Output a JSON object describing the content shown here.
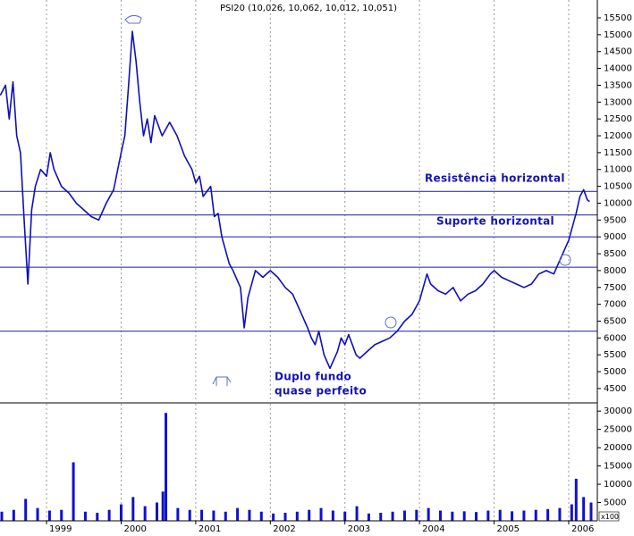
{
  "chart_data": [
    {
      "type": "line",
      "title": "PSI20 (10,026, 10,062, 10,012, 10,051)",
      "color": "#1010b8",
      "x": [
        1998.38,
        1998.45,
        1998.5,
        1998.55,
        1998.6,
        1998.65,
        1998.7,
        1998.75,
        1998.8,
        1998.85,
        1998.92,
        1999.0,
        1999.05,
        1999.1,
        1999.2,
        1999.3,
        1999.4,
        1999.5,
        1999.6,
        1999.7,
        1999.8,
        1999.9,
        2000.0,
        2000.05,
        2000.1,
        2000.15,
        2000.2,
        2000.25,
        2000.3,
        2000.35,
        2000.4,
        2000.45,
        2000.55,
        2000.65,
        2000.75,
        2000.85,
        2000.95,
        2001.0,
        2001.05,
        2001.1,
        2001.2,
        2001.25,
        2001.3,
        2001.35,
        2001.45,
        2001.5,
        2001.6,
        2001.65,
        2001.7,
        2001.8,
        2001.9,
        2002.0,
        2002.1,
        2002.2,
        2002.3,
        2002.4,
        2002.5,
        2002.55,
        2002.6,
        2002.65,
        2002.72,
        2002.8,
        2002.9,
        2002.95,
        2003.0,
        2003.05,
        2003.15,
        2003.2,
        2003.3,
        2003.4,
        2003.5,
        2003.6,
        2003.7,
        2003.8,
        2003.9,
        2004.0,
        2004.05,
        2004.1,
        2004.15,
        2004.25,
        2004.35,
        2004.45,
        2004.55,
        2004.65,
        2004.75,
        2004.85,
        2004.95,
        2005.0,
        2005.1,
        2005.2,
        2005.3,
        2005.4,
        2005.5,
        2005.6,
        2005.7,
        2005.8,
        2005.9,
        2006.0,
        2006.05,
        2006.1,
        2006.15,
        2006.2,
        2006.25,
        2006.28
      ],
      "values": [
        13200,
        13500,
        12500,
        13600,
        12000,
        11500,
        9500,
        7600,
        9800,
        10500,
        11000,
        10800,
        11500,
        11000,
        10500,
        10300,
        10000,
        9800,
        9600,
        9500,
        10000,
        10400,
        11500,
        12000,
        13500,
        15100,
        14200,
        13000,
        12000,
        12500,
        11800,
        12600,
        12000,
        12400,
        12000,
        11400,
        11000,
        10600,
        10800,
        10200,
        10500,
        9600,
        9700,
        9000,
        8200,
        8000,
        7500,
        6300,
        7200,
        8000,
        7800,
        8000,
        7800,
        7500,
        7300,
        6800,
        6300,
        6000,
        5800,
        6200,
        5500,
        5100,
        5600,
        6000,
        5800,
        6100,
        5500,
        5400,
        5600,
        5800,
        5900,
        6000,
        6200,
        6500,
        6700,
        7100,
        7500,
        7900,
        7600,
        7400,
        7300,
        7500,
        7100,
        7300,
        7400,
        7600,
        7900,
        8000,
        7800,
        7700,
        7600,
        7500,
        7600,
        7900,
        8000,
        7900,
        8400,
        8900,
        9300,
        9700,
        10200,
        10400,
        10100,
        10050
      ],
      "xlim": [
        1998.376,
        2006.384
      ],
      "xticks": [
        1999,
        2000,
        2001,
        2002,
        2003,
        2004,
        2005,
        2006
      ],
      "ylim": [
        4100,
        16030
      ],
      "yticks": [
        4500,
        5000,
        5500,
        6000,
        6500,
        7000,
        7500,
        8000,
        8500,
        9000,
        9500,
        10000,
        10500,
        11000,
        11500,
        12000,
        12500,
        13000,
        13500,
        14000,
        14500,
        15000,
        15500
      ],
      "reference_lines": [
        10350,
        9650,
        9000,
        8100,
        6200
      ],
      "reference_color": "#1a1aa6",
      "annotations": [
        "Resistência horizontal",
        "Suporte horizontal",
        "Duplo fundo",
        "quase perfeito"
      ]
    },
    {
      "type": "bar",
      "color": "#1010d0",
      "unit_label": "x100",
      "x": [
        1998.4,
        1998.56,
        1998.72,
        1998.88,
        1999.04,
        1999.2,
        1999.36,
        1999.52,
        1999.68,
        1999.84,
        2000.0,
        2000.16,
        2000.32,
        2000.48,
        2000.56,
        2000.6,
        2000.76,
        2000.92,
        2001.08,
        2001.24,
        2001.4,
        2001.56,
        2001.72,
        2001.88,
        2002.04,
        2002.2,
        2002.36,
        2002.52,
        2002.68,
        2002.84,
        2003.0,
        2003.16,
        2003.32,
        2003.48,
        2003.64,
        2003.8,
        2003.96,
        2004.12,
        2004.28,
        2004.44,
        2004.6,
        2004.76,
        2004.92,
        2005.08,
        2005.24,
        2005.4,
        2005.56,
        2005.72,
        2005.88,
        2006.04,
        2006.1,
        2006.2,
        2006.3
      ],
      "values": [
        2500,
        3000,
        6000,
        3500,
        2800,
        3000,
        16000,
        2500,
        2200,
        3000,
        4500,
        6500,
        4000,
        5000,
        8000,
        29500,
        3500,
        3000,
        3000,
        2800,
        2500,
        3500,
        3000,
        2500,
        2000,
        2200,
        2500,
        3000,
        3500,
        2800,
        2500,
        4000,
        2000,
        2200,
        2500,
        2800,
        3000,
        3500,
        2800,
        2500,
        2600,
        2400,
        2800,
        3000,
        2600,
        2800,
        3000,
        3200,
        3500,
        4500,
        11500,
        6500,
        5000
      ],
      "xlim": [
        1998.376,
        2006.384
      ],
      "ylim": [
        0,
        32000
      ],
      "yticks": [
        5000,
        10000,
        15000,
        20000,
        25000,
        30000
      ]
    }
  ]
}
